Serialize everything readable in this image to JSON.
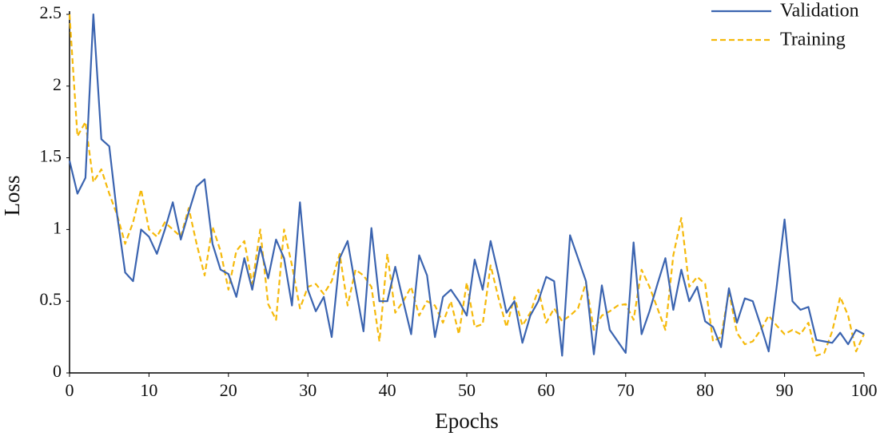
{
  "chart_data": {
    "type": "line",
    "x_label": "Epochs",
    "y_label": "Loss",
    "x": [
      0,
      1,
      2,
      3,
      4,
      5,
      6,
      7,
      8,
      9,
      10,
      11,
      12,
      13,
      14,
      15,
      16,
      17,
      18,
      19,
      20,
      21,
      22,
      23,
      24,
      25,
      26,
      27,
      28,
      29,
      30,
      31,
      32,
      33,
      34,
      35,
      36,
      37,
      38,
      39,
      40,
      41,
      42,
      43,
      44,
      45,
      46,
      47,
      48,
      49,
      50,
      51,
      52,
      53,
      54,
      55,
      56,
      57,
      58,
      59,
      60,
      61,
      62,
      63,
      64,
      65,
      66,
      67,
      68,
      69,
      70,
      71,
      72,
      73,
      74,
      75,
      76,
      77,
      78,
      79,
      80,
      81,
      82,
      83,
      84,
      85,
      86,
      87,
      88,
      89,
      90,
      91,
      92,
      93,
      94,
      95,
      96,
      97,
      98,
      99,
      100
    ],
    "series": [
      {
        "name": "Validation",
        "color": "#3b64b0",
        "dash": false,
        "values": [
          1.48,
          1.25,
          1.36,
          2.5,
          1.63,
          1.58,
          1.1,
          0.7,
          0.64,
          1.0,
          0.95,
          0.83,
          1.0,
          1.19,
          0.93,
          1.12,
          1.3,
          1.35,
          0.9,
          0.72,
          0.69,
          0.53,
          0.8,
          0.58,
          0.88,
          0.66,
          0.93,
          0.8,
          0.47,
          1.19,
          0.58,
          0.43,
          0.53,
          0.25,
          0.8,
          0.92,
          0.6,
          0.29,
          1.01,
          0.5,
          0.5,
          0.74,
          0.5,
          0.27,
          0.82,
          0.68,
          0.25,
          0.53,
          0.58,
          0.5,
          0.4,
          0.79,
          0.58,
          0.92,
          0.68,
          0.42,
          0.5,
          0.21,
          0.4,
          0.5,
          0.67,
          0.64,
          0.12,
          0.96,
          0.8,
          0.64,
          0.13,
          0.61,
          0.3,
          0.22,
          0.14,
          0.91,
          0.27,
          0.43,
          0.62,
          0.8,
          0.44,
          0.72,
          0.5,
          0.6,
          0.36,
          0.32,
          0.18,
          0.59,
          0.35,
          0.52,
          0.5,
          0.33,
          0.15,
          0.6,
          1.07,
          0.5,
          0.44,
          0.46,
          0.23,
          0.22,
          0.21,
          0.28,
          0.2,
          0.3,
          0.27
        ]
      },
      {
        "name": "Training",
        "color": "#f5b90a",
        "dash": true,
        "values": [
          2.5,
          1.65,
          1.75,
          1.33,
          1.42,
          1.25,
          1.1,
          0.9,
          1.05,
          1.28,
          1.0,
          0.95,
          1.05,
          1.0,
          0.95,
          1.15,
          0.9,
          0.68,
          1.02,
          0.85,
          0.58,
          0.85,
          0.92,
          0.62,
          1.0,
          0.48,
          0.37,
          1.0,
          0.75,
          0.45,
          0.6,
          0.62,
          0.55,
          0.64,
          0.83,
          0.47,
          0.72,
          0.68,
          0.6,
          0.22,
          0.83,
          0.42,
          0.5,
          0.6,
          0.4,
          0.5,
          0.47,
          0.35,
          0.5,
          0.27,
          0.63,
          0.32,
          0.34,
          0.75,
          0.52,
          0.32,
          0.53,
          0.33,
          0.42,
          0.58,
          0.35,
          0.45,
          0.36,
          0.4,
          0.45,
          0.63,
          0.3,
          0.4,
          0.43,
          0.47,
          0.48,
          0.37,
          0.72,
          0.6,
          0.45,
          0.3,
          0.82,
          1.08,
          0.6,
          0.67,
          0.62,
          0.22,
          0.25,
          0.57,
          0.28,
          0.2,
          0.22,
          0.3,
          0.4,
          0.33,
          0.27,
          0.3,
          0.27,
          0.35,
          0.12,
          0.14,
          0.29,
          0.53,
          0.4,
          0.15,
          0.27
        ]
      }
    ],
    "xlim": [
      0,
      100
    ],
    "xticks": [
      0,
      10,
      20,
      30,
      40,
      50,
      60,
      70,
      80,
      90,
      100
    ],
    "ylim": [
      0,
      2.5
    ],
    "yticks": [
      0,
      0.5,
      1,
      1.5,
      2,
      2.5
    ],
    "legend": "upper right"
  }
}
